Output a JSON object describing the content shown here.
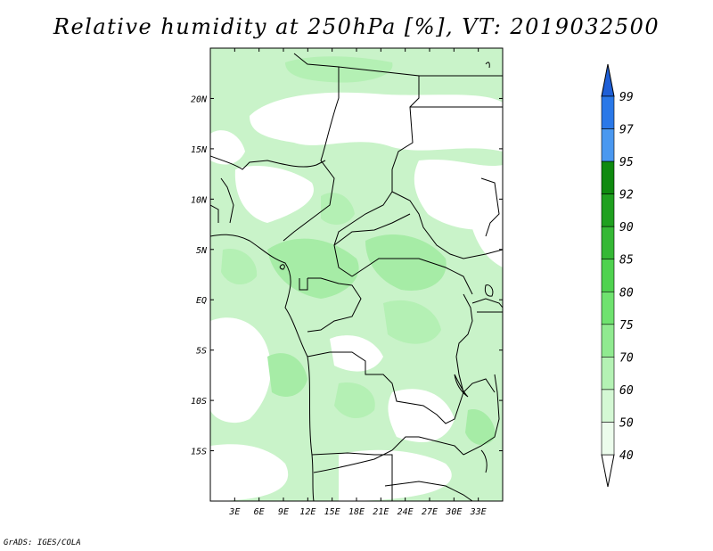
{
  "title": "Relative humidity at 250hPa [%], VT: 2019032500",
  "credit": "GrADS: IGES/COLA",
  "map": {
    "projection": "latlon",
    "lon_range": [
      0,
      36
    ],
    "lat_range": [
      -20,
      25
    ],
    "lon_ticks": [
      "3E",
      "6E",
      "9E",
      "12E",
      "15E",
      "18E",
      "21E",
      "24E",
      "27E",
      "30E",
      "33E"
    ],
    "lat_ticks": [
      "20N",
      "15N",
      "10N",
      "5N",
      "EQ",
      "5S",
      "10S",
      "15S"
    ],
    "variable": "Relative humidity",
    "level": "250hPa",
    "units": "%",
    "valid_time": "2019032500"
  },
  "colorbar": {
    "levels": [
      "99",
      "97",
      "95",
      "92",
      "90",
      "85",
      "80",
      "75",
      "70",
      "60",
      "50",
      "40"
    ],
    "colors": [
      "#1f5fd6",
      "#2a78e8",
      "#4a98f0",
      "#0f8a0f",
      "#1fa01f",
      "#35b835",
      "#4fd24f",
      "#6fe26f",
      "#90ea90",
      "#b4f2b4",
      "#d4f8d4",
      "#ecfcec",
      "#ffffff"
    ]
  }
}
